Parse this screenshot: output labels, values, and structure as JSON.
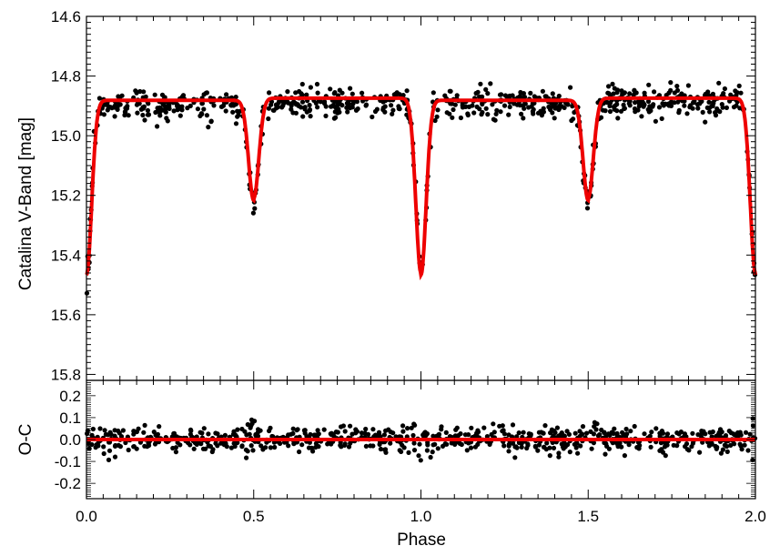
{
  "chart_data": [
    {
      "type": "scatter",
      "panel": "light-curve",
      "xlabel": "",
      "ylabel": "Catalina V-Band [mag]",
      "xlim": [
        0.0,
        2.0
      ],
      "ylim": [
        14.6,
        15.82
      ],
      "y_inverted": true,
      "yticks": [
        14.6,
        14.8,
        15.0,
        15.2,
        15.4,
        15.6,
        15.8
      ],
      "ytick_labels": [
        "14.6",
        "14.8",
        "15.0",
        "15.2",
        "15.4",
        "15.6",
        "15.8"
      ],
      "series": [
        {
          "kind": "points",
          "color": "#000000",
          "model": {
            "base": 14.9,
            "o_crest": 0.025,
            "primary": {
              "phase": 0.0,
              "depth": 0.57,
              "width": 0.013
            },
            "secondary": {
              "phase": 0.5,
              "depth": 0.34,
              "width": 0.013
            },
            "scatter": 0.03
          }
        },
        {
          "kind": "line",
          "color": "#ee0000",
          "model": {
            "base": 14.885,
            "o_crest": 0.018,
            "primary": {
              "phase": 0.0,
              "depth": 0.585,
              "width": 0.0135
            },
            "secondary": {
              "phase": 0.5,
              "depth": 0.335,
              "width": 0.0135
            }
          }
        }
      ]
    },
    {
      "type": "scatter",
      "panel": "residuals",
      "xlabel": "Phase",
      "ylabel": "O-C",
      "xlim": [
        0.0,
        2.0
      ],
      "ylim": [
        -0.27,
        0.27
      ],
      "xticks": [
        0.0,
        0.5,
        1.0,
        1.5,
        2.0
      ],
      "xtick_labels": [
        "0.0",
        "0.5",
        "1.0",
        "1.5",
        "2.0"
      ],
      "yticks": [
        0.2,
        0.1,
        0.0,
        -0.1,
        -0.2
      ],
      "ytick_labels": [
        "0.2",
        "0.1",
        "0.0",
        "-0.1",
        "-0.2"
      ],
      "series": [
        {
          "kind": "points",
          "color": "#000000",
          "scatter": 0.028
        },
        {
          "kind": "line",
          "color": "#ee0000",
          "value": 0.0
        }
      ]
    }
  ]
}
